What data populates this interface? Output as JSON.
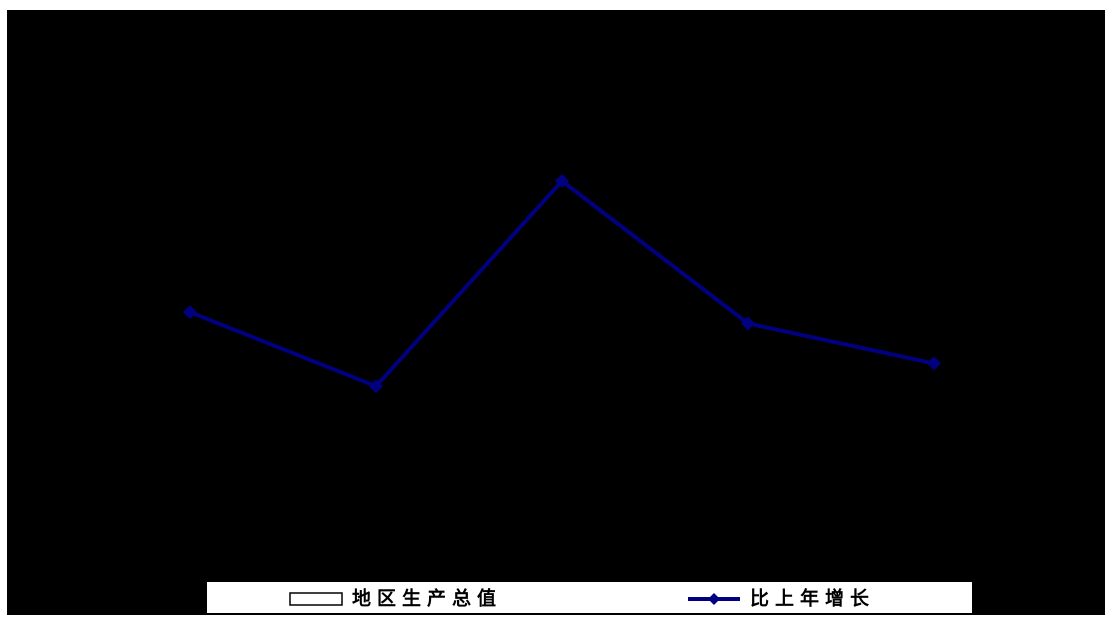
{
  "chart_data": {
    "type": "bar-line",
    "categories": [
      null,
      null,
      null,
      null,
      null
    ],
    "ylim": [
      0,
      10
    ],
    "series": [
      {
        "name": "地区生产总值",
        "type": "bar",
        "color": "#000000",
        "values": [
          null,
          null,
          null,
          null,
          null
        ]
      },
      {
        "name": "比上年增长",
        "type": "line",
        "color": "#000080",
        "values": [
          4.7,
          3.4,
          7.0,
          4.5,
          3.8
        ]
      }
    ]
  }
}
